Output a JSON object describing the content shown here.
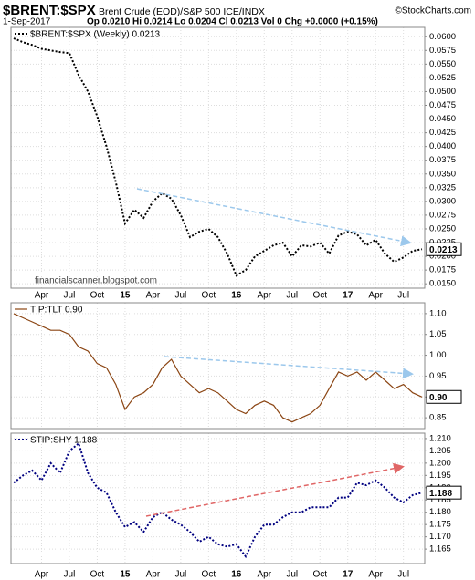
{
  "header": {
    "symbol": "$BRENT:$SPX",
    "description": "Brent Crude (EOD)/S&P 500 ICE/INDX",
    "credit": "©StockCharts.com",
    "date": "1-Sep-2017",
    "stats": "Op 0.0210 Hi 0.0214 Lo 0.0204 Cl 0.0213 Vol 0 Chg +0.0000 (+0.15%)"
  },
  "chart_data": [
    {
      "type": "line",
      "annotation": "financialscanner.blogspot.com",
      "categories": [
        null,
        null,
        null,
        "Apr",
        null,
        null,
        "Jul",
        null,
        null,
        "Oct",
        null,
        null,
        "15",
        null,
        null,
        "Apr",
        null,
        null,
        "Jul",
        null,
        null,
        "Oct",
        null,
        null,
        "16",
        null,
        null,
        "Apr",
        null,
        null,
        "Jul",
        null,
        null,
        "Oct",
        null,
        null,
        "17",
        null,
        null,
        "Apr",
        null,
        null,
        "Jul",
        null,
        null
      ],
      "series": [
        {
          "name": "$BRENT:$SPX (Weekly) 0.0213",
          "color": "#000000",
          "style": "dotted",
          "values": [
            0.0597,
            0.059,
            0.0585,
            0.0578,
            0.0575,
            0.0572,
            0.057,
            0.053,
            0.05,
            0.0455,
            0.04,
            0.0335,
            0.026,
            0.0285,
            0.027,
            0.03,
            0.0315,
            0.0305,
            0.0275,
            0.0235,
            0.0245,
            0.025,
            0.0235,
            0.0205,
            0.0165,
            0.0175,
            0.02,
            0.021,
            0.022,
            0.0225,
            0.02,
            0.022,
            0.0218,
            0.0225,
            0.0205,
            0.0238,
            0.0245,
            0.024,
            0.022,
            0.023,
            0.0205,
            0.019,
            0.0198,
            0.021,
            0.0213
          ]
        }
      ],
      "ylim": [
        0.0142,
        0.0617
      ],
      "yticks": [
        {
          "value": 0.015,
          "label": "0.0150"
        },
        0.0175,
        {
          "value": 0.02,
          "label": "0.0200"
        },
        0.0225,
        {
          "value": 0.025,
          "label": "0.0250"
        },
        0.0275,
        {
          "value": 0.03,
          "label": "0.0300"
        },
        0.0325,
        {
          "value": 0.035,
          "label": "0.0350"
        },
        0.0375,
        {
          "value": 0.04,
          "label": "0.0400"
        },
        0.0425,
        {
          "value": 0.045,
          "label": "0.0450"
        },
        0.0475,
        {
          "value": 0.05,
          "label": "0.0500"
        },
        0.0525,
        {
          "value": 0.055,
          "label": "0.0550"
        },
        0.0575,
        {
          "value": 0.06,
          "label": "0.0600"
        }
      ],
      "grid": true
    },
    {
      "type": "line",
      "series": [
        {
          "name": "TIP:TLT 0.90",
          "color": "#8b4513",
          "style": "solid",
          "values": [
            1.1,
            1.09,
            1.08,
            1.07,
            1.06,
            1.06,
            1.05,
            1.02,
            1.01,
            0.98,
            0.97,
            0.93,
            0.87,
            0.9,
            0.91,
            0.93,
            0.97,
            0.99,
            0.95,
            0.93,
            0.91,
            0.92,
            0.91,
            0.89,
            0.87,
            0.86,
            0.88,
            0.89,
            0.88,
            0.85,
            0.84,
            0.85,
            0.86,
            0.88,
            0.92,
            0.96,
            0.95,
            0.96,
            0.94,
            0.96,
            0.94,
            0.92,
            0.93,
            0.91,
            0.9
          ],
          "value_labels": [
            null,
            null,
            null,
            null,
            null,
            null,
            null,
            null,
            null,
            null,
            null,
            null,
            null,
            null,
            null,
            null,
            null,
            null,
            null,
            null,
            null,
            null,
            null,
            null,
            null,
            null,
            null,
            null,
            null,
            null,
            null,
            null,
            null,
            null,
            null,
            null,
            null,
            null,
            null,
            null,
            null,
            null,
            null,
            null,
            "0.90"
          ]
        }
      ],
      "ylim": [
        0.824,
        1.126
      ],
      "yticks": [
        0.85,
        {
          "value": 0.9,
          "label": "0.90"
        },
        0.95,
        {
          "value": 1,
          "label": "1.00"
        },
        1.05,
        {
          "value": 1.1,
          "label": "1.10"
        }
      ],
      "grid": true
    },
    {
      "type": "line",
      "categories": [
        null,
        null,
        null,
        "Apr",
        null,
        null,
        "Jul",
        null,
        null,
        "Oct",
        null,
        null,
        "15",
        null,
        null,
        "Apr",
        null,
        null,
        "Jul",
        null,
        null,
        "Oct",
        null,
        null,
        "16",
        null,
        null,
        "Apr",
        null,
        null,
        "Jul",
        null,
        null,
        "Oct",
        null,
        null,
        "17",
        null,
        null,
        "Apr",
        null,
        null,
        "Jul",
        null,
        null
      ],
      "series": [
        {
          "name": "STIP:SHY 1.188",
          "color": "#000080",
          "style": "dotted",
          "values": [
            1.192,
            1.195,
            1.197,
            1.193,
            1.2,
            1.196,
            1.205,
            1.208,
            1.196,
            1.19,
            1.188,
            1.18,
            1.174,
            1.176,
            1.172,
            1.178,
            1.18,
            1.177,
            1.175,
            1.172,
            1.168,
            1.17,
            1.167,
            1.166,
            1.167,
            1.162,
            1.17,
            1.175,
            1.175,
            1.178,
            1.18,
            1.18,
            1.182,
            1.182,
            1.182,
            1.186,
            1.186,
            1.192,
            1.191,
            1.193,
            1.19,
            1.186,
            1.184,
            1.187,
            1.188
          ]
        }
      ],
      "ylim": [
        1.1591,
        1.2122
      ],
      "yticks": [
        1.165,
        {
          "value": 1.17,
          "label": "1.170"
        },
        1.175,
        {
          "value": 1.18,
          "label": "1.180"
        },
        1.185,
        {
          "value": 1.19,
          "label": "1.190"
        },
        1.195,
        {
          "value": 1.2,
          "label": "1.200"
        },
        1.205,
        {
          "value": 1.21,
          "label": "1.210"
        }
      ],
      "grid": true
    }
  ]
}
